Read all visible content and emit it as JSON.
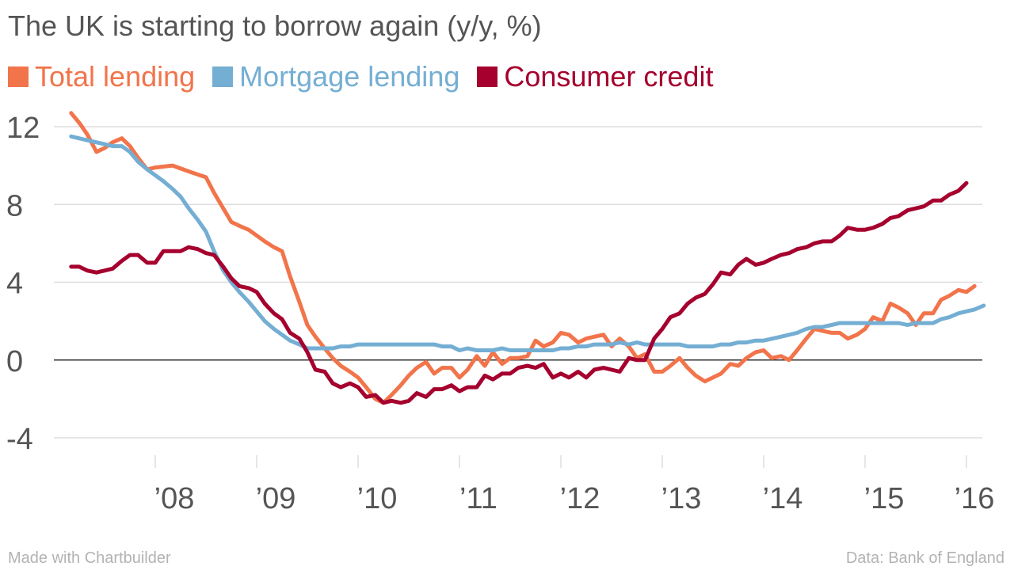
{
  "colors": {
    "total": "#f2744b",
    "mortgage": "#74aed3",
    "consumer": "#a5002e",
    "grid": "#dddddd",
    "zero": "#333333",
    "tick_text": "#555555"
  },
  "chart_data": {
    "type": "line",
    "title": "The UK is starting to borrow again (y/y, %)",
    "xlabel": "",
    "ylabel": "",
    "ylim": [
      -4,
      12
    ],
    "xlim": [
      2007.2,
      2016.1
    ],
    "yticks": [
      -4,
      0,
      4,
      8,
      12
    ],
    "ytick_labels": [
      "-4",
      "0",
      "4",
      "8",
      "12"
    ],
    "xticks": [
      2008,
      2009,
      2010,
      2011,
      2012,
      2013,
      2014,
      2015,
      2016
    ],
    "xtick_labels": [
      "’08",
      "’09",
      "’10",
      "’11",
      "’12",
      "’13",
      "’14",
      "’15",
      "’16"
    ],
    "grid": true,
    "legend_position": "top-left",
    "series": [
      {
        "name": "Total lending",
        "color": "#f2744b",
        "points": [
          [
            2007.17,
            12.7
          ],
          [
            2007.25,
            12.2
          ],
          [
            2007.33,
            11.6
          ],
          [
            2007.42,
            10.7
          ],
          [
            2007.5,
            10.9
          ],
          [
            2007.58,
            11.2
          ],
          [
            2007.67,
            11.4
          ],
          [
            2007.75,
            11.0
          ],
          [
            2007.83,
            10.4
          ],
          [
            2007.92,
            9.8
          ],
          [
            2008.0,
            9.9
          ],
          [
            2008.17,
            10.0
          ],
          [
            2008.33,
            9.7
          ],
          [
            2008.5,
            9.4
          ],
          [
            2008.58,
            8.6
          ],
          [
            2008.67,
            7.8
          ],
          [
            2008.75,
            7.1
          ],
          [
            2008.83,
            6.9
          ],
          [
            2008.92,
            6.7
          ],
          [
            2009.0,
            6.4
          ],
          [
            2009.08,
            6.1
          ],
          [
            2009.17,
            5.8
          ],
          [
            2009.25,
            5.6
          ],
          [
            2009.33,
            4.3
          ],
          [
            2009.42,
            3.0
          ],
          [
            2009.5,
            1.8
          ],
          [
            2009.58,
            1.2
          ],
          [
            2009.67,
            0.6
          ],
          [
            2009.75,
            0.1
          ],
          [
            2009.83,
            -0.3
          ],
          [
            2009.92,
            -0.6
          ],
          [
            2010.0,
            -0.9
          ],
          [
            2010.08,
            -1.4
          ],
          [
            2010.17,
            -2.0
          ],
          [
            2010.25,
            -2.2
          ],
          [
            2010.33,
            -1.8
          ],
          [
            2010.42,
            -1.3
          ],
          [
            2010.5,
            -0.8
          ],
          [
            2010.58,
            -0.4
          ],
          [
            2010.67,
            -0.1
          ],
          [
            2010.75,
            -0.7
          ],
          [
            2010.83,
            -0.4
          ],
          [
            2010.92,
            -0.4
          ],
          [
            2011.0,
            -0.9
          ],
          [
            2011.08,
            -0.5
          ],
          [
            2011.17,
            0.2
          ],
          [
            2011.25,
            -0.3
          ],
          [
            2011.33,
            0.4
          ],
          [
            2011.42,
            -0.2
          ],
          [
            2011.5,
            0.1
          ],
          [
            2011.58,
            0.1
          ],
          [
            2011.67,
            0.2
          ],
          [
            2011.75,
            1.0
          ],
          [
            2011.83,
            0.7
          ],
          [
            2011.92,
            0.9
          ],
          [
            2012.0,
            1.4
          ],
          [
            2012.08,
            1.3
          ],
          [
            2012.17,
            0.9
          ],
          [
            2012.25,
            1.1
          ],
          [
            2012.33,
            1.2
          ],
          [
            2012.42,
            1.3
          ],
          [
            2012.5,
            0.7
          ],
          [
            2012.58,
            1.1
          ],
          [
            2012.67,
            0.7
          ],
          [
            2012.75,
            0.1
          ],
          [
            2012.83,
            0.3
          ],
          [
            2012.92,
            -0.6
          ],
          [
            2013.0,
            -0.6
          ],
          [
            2013.08,
            -0.3
          ],
          [
            2013.17,
            0.1
          ],
          [
            2013.25,
            -0.4
          ],
          [
            2013.33,
            -0.8
          ],
          [
            2013.42,
            -1.1
          ],
          [
            2013.5,
            -0.9
          ],
          [
            2013.58,
            -0.7
          ],
          [
            2013.67,
            -0.2
          ],
          [
            2013.75,
            -0.3
          ],
          [
            2013.83,
            0.1
          ],
          [
            2013.92,
            0.4
          ],
          [
            2014.0,
            0.5
          ],
          [
            2014.08,
            0.1
          ],
          [
            2014.17,
            0.2
          ],
          [
            2014.25,
            0.0
          ],
          [
            2014.33,
            0.5
          ],
          [
            2014.42,
            1.1
          ],
          [
            2014.5,
            1.6
          ],
          [
            2014.58,
            1.5
          ],
          [
            2014.67,
            1.4
          ],
          [
            2014.75,
            1.4
          ],
          [
            2014.83,
            1.1
          ],
          [
            2014.92,
            1.3
          ],
          [
            2015.0,
            1.6
          ],
          [
            2015.08,
            2.2
          ],
          [
            2015.17,
            2.0
          ],
          [
            2015.25,
            2.9
          ],
          [
            2015.33,
            2.7
          ],
          [
            2015.42,
            2.4
          ],
          [
            2015.5,
            1.8
          ],
          [
            2015.58,
            2.4
          ],
          [
            2015.67,
            2.4
          ],
          [
            2015.75,
            3.1
          ],
          [
            2015.83,
            3.3
          ],
          [
            2015.92,
            3.6
          ],
          [
            2016.0,
            3.5
          ],
          [
            2016.08,
            3.8
          ]
        ]
      },
      {
        "name": "Mortgage lending",
        "color": "#74aed3",
        "points": [
          [
            2007.17,
            11.5
          ],
          [
            2007.33,
            11.3
          ],
          [
            2007.5,
            11.1
          ],
          [
            2007.58,
            11.0
          ],
          [
            2007.67,
            11.0
          ],
          [
            2007.75,
            10.7
          ],
          [
            2007.83,
            10.2
          ],
          [
            2007.92,
            9.8
          ],
          [
            2008.0,
            9.5
          ],
          [
            2008.08,
            9.2
          ],
          [
            2008.17,
            8.8
          ],
          [
            2008.25,
            8.4
          ],
          [
            2008.33,
            7.8
          ],
          [
            2008.42,
            7.2
          ],
          [
            2008.5,
            6.6
          ],
          [
            2008.58,
            5.6
          ],
          [
            2008.67,
            4.6
          ],
          [
            2008.75,
            4.0
          ],
          [
            2008.83,
            3.5
          ],
          [
            2008.92,
            3.0
          ],
          [
            2009.0,
            2.5
          ],
          [
            2009.08,
            2.0
          ],
          [
            2009.17,
            1.6
          ],
          [
            2009.25,
            1.3
          ],
          [
            2009.33,
            1.0
          ],
          [
            2009.42,
            0.8
          ],
          [
            2009.5,
            0.6
          ],
          [
            2009.67,
            0.6
          ],
          [
            2009.75,
            0.6
          ],
          [
            2009.83,
            0.7
          ],
          [
            2009.92,
            0.7
          ],
          [
            2010.0,
            0.8
          ],
          [
            2010.25,
            0.8
          ],
          [
            2010.5,
            0.8
          ],
          [
            2010.75,
            0.8
          ],
          [
            2010.83,
            0.7
          ],
          [
            2010.92,
            0.7
          ],
          [
            2011.0,
            0.5
          ],
          [
            2011.08,
            0.6
          ],
          [
            2011.17,
            0.5
          ],
          [
            2011.33,
            0.5
          ],
          [
            2011.42,
            0.6
          ],
          [
            2011.5,
            0.5
          ],
          [
            2011.75,
            0.5
          ],
          [
            2011.92,
            0.5
          ],
          [
            2012.0,
            0.6
          ],
          [
            2012.08,
            0.6
          ],
          [
            2012.17,
            0.7
          ],
          [
            2012.25,
            0.7
          ],
          [
            2012.33,
            0.8
          ],
          [
            2012.5,
            0.8
          ],
          [
            2012.58,
            0.9
          ],
          [
            2012.67,
            0.8
          ],
          [
            2012.75,
            0.9
          ],
          [
            2012.83,
            0.8
          ],
          [
            2013.0,
            0.8
          ],
          [
            2013.17,
            0.8
          ],
          [
            2013.25,
            0.7
          ],
          [
            2013.5,
            0.7
          ],
          [
            2013.58,
            0.8
          ],
          [
            2013.67,
            0.8
          ],
          [
            2013.75,
            0.9
          ],
          [
            2013.83,
            0.9
          ],
          [
            2013.92,
            1.0
          ],
          [
            2014.0,
            1.0
          ],
          [
            2014.17,
            1.2
          ],
          [
            2014.33,
            1.4
          ],
          [
            2014.42,
            1.6
          ],
          [
            2014.5,
            1.7
          ],
          [
            2014.58,
            1.7
          ],
          [
            2014.67,
            1.8
          ],
          [
            2014.75,
            1.9
          ],
          [
            2015.0,
            1.9
          ],
          [
            2015.25,
            1.9
          ],
          [
            2015.33,
            1.9
          ],
          [
            2015.42,
            1.8
          ],
          [
            2015.5,
            1.9
          ],
          [
            2015.67,
            1.9
          ],
          [
            2015.75,
            2.1
          ],
          [
            2015.83,
            2.2
          ],
          [
            2015.92,
            2.4
          ],
          [
            2016.0,
            2.5
          ],
          [
            2016.08,
            2.6
          ],
          [
            2016.17,
            2.8
          ]
        ]
      },
      {
        "name": "Consumer credit",
        "color": "#a5002e",
        "points": [
          [
            2007.17,
            4.8
          ],
          [
            2007.25,
            4.8
          ],
          [
            2007.33,
            4.6
          ],
          [
            2007.42,
            4.5
          ],
          [
            2007.5,
            4.6
          ],
          [
            2007.58,
            4.7
          ],
          [
            2007.67,
            5.1
          ],
          [
            2007.75,
            5.4
          ],
          [
            2007.83,
            5.4
          ],
          [
            2007.92,
            5.0
          ],
          [
            2008.0,
            5.0
          ],
          [
            2008.08,
            5.6
          ],
          [
            2008.17,
            5.6
          ],
          [
            2008.25,
            5.6
          ],
          [
            2008.33,
            5.8
          ],
          [
            2008.42,
            5.7
          ],
          [
            2008.5,
            5.5
          ],
          [
            2008.58,
            5.4
          ],
          [
            2008.67,
            4.8
          ],
          [
            2008.75,
            4.2
          ],
          [
            2008.83,
            3.8
          ],
          [
            2008.92,
            3.7
          ],
          [
            2009.0,
            3.5
          ],
          [
            2009.08,
            2.9
          ],
          [
            2009.17,
            2.4
          ],
          [
            2009.25,
            2.1
          ],
          [
            2009.33,
            1.4
          ],
          [
            2009.42,
            1.1
          ],
          [
            2009.5,
            0.4
          ],
          [
            2009.58,
            -0.5
          ],
          [
            2009.67,
            -0.6
          ],
          [
            2009.75,
            -1.2
          ],
          [
            2009.83,
            -1.4
          ],
          [
            2009.92,
            -1.2
          ],
          [
            2010.0,
            -1.4
          ],
          [
            2010.08,
            -1.9
          ],
          [
            2010.17,
            -1.8
          ],
          [
            2010.25,
            -2.2
          ],
          [
            2010.33,
            -2.1
          ],
          [
            2010.42,
            -2.2
          ],
          [
            2010.5,
            -2.1
          ],
          [
            2010.58,
            -1.7
          ],
          [
            2010.67,
            -1.9
          ],
          [
            2010.75,
            -1.5
          ],
          [
            2010.83,
            -1.5
          ],
          [
            2010.92,
            -1.3
          ],
          [
            2011.0,
            -1.6
          ],
          [
            2011.08,
            -1.4
          ],
          [
            2011.17,
            -1.4
          ],
          [
            2011.25,
            -0.8
          ],
          [
            2011.33,
            -1.0
          ],
          [
            2011.42,
            -0.7
          ],
          [
            2011.5,
            -0.7
          ],
          [
            2011.58,
            -0.4
          ],
          [
            2011.67,
            -0.3
          ],
          [
            2011.75,
            -0.4
          ],
          [
            2011.83,
            -0.2
          ],
          [
            2011.92,
            -0.9
          ],
          [
            2012.0,
            -0.7
          ],
          [
            2012.08,
            -0.9
          ],
          [
            2012.17,
            -0.6
          ],
          [
            2012.25,
            -0.9
          ],
          [
            2012.33,
            -0.5
          ],
          [
            2012.42,
            -0.4
          ],
          [
            2012.5,
            -0.5
          ],
          [
            2012.58,
            -0.6
          ],
          [
            2012.67,
            0.1
          ],
          [
            2012.75,
            0.0
          ],
          [
            2012.83,
            0.0
          ],
          [
            2012.92,
            1.1
          ],
          [
            2013.0,
            1.6
          ],
          [
            2013.08,
            2.2
          ],
          [
            2013.17,
            2.4
          ],
          [
            2013.25,
            2.9
          ],
          [
            2013.33,
            3.2
          ],
          [
            2013.42,
            3.4
          ],
          [
            2013.5,
            3.9
          ],
          [
            2013.58,
            4.5
          ],
          [
            2013.67,
            4.4
          ],
          [
            2013.75,
            4.9
          ],
          [
            2013.83,
            5.2
          ],
          [
            2013.92,
            4.9
          ],
          [
            2014.0,
            5.0
          ],
          [
            2014.08,
            5.2
          ],
          [
            2014.17,
            5.4
          ],
          [
            2014.25,
            5.5
          ],
          [
            2014.33,
            5.7
          ],
          [
            2014.42,
            5.8
          ],
          [
            2014.5,
            6.0
          ],
          [
            2014.58,
            6.1
          ],
          [
            2014.67,
            6.1
          ],
          [
            2014.75,
            6.4
          ],
          [
            2014.83,
            6.8
          ],
          [
            2014.92,
            6.7
          ],
          [
            2015.0,
            6.7
          ],
          [
            2015.08,
            6.8
          ],
          [
            2015.17,
            7.0
          ],
          [
            2015.25,
            7.3
          ],
          [
            2015.33,
            7.4
          ],
          [
            2015.42,
            7.7
          ],
          [
            2015.5,
            7.8
          ],
          [
            2015.58,
            7.9
          ],
          [
            2015.67,
            8.2
          ],
          [
            2015.75,
            8.2
          ],
          [
            2015.83,
            8.5
          ],
          [
            2015.92,
            8.7
          ],
          [
            2016.0,
            9.1
          ]
        ]
      }
    ]
  },
  "footer": {
    "left": "Made with Chartbuilder",
    "right": "Data: Bank of England"
  }
}
